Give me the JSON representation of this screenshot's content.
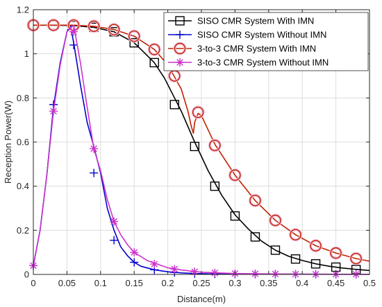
{
  "chart_data": {
    "type": "line",
    "title": "",
    "xlabel": "Distance(m)",
    "ylabel": "Reception Power(W)",
    "xlim": [
      0,
      0.5
    ],
    "ylim": [
      0,
      1.2
    ],
    "xticks": [
      0,
      0.05,
      0.1,
      0.15,
      0.2,
      0.25,
      0.3,
      0.35,
      0.4,
      0.45,
      0.5
    ],
    "xtick_labels": [
      "0",
      "0.05",
      "0.1",
      "0.15",
      "0.2",
      "0.25",
      "0.3",
      "0.35",
      "0.4",
      "0.45",
      "0.5"
    ],
    "yticks": [
      0,
      0.2,
      0.4,
      0.6,
      0.8,
      1.0,
      1.2
    ],
    "ytick_labels": [
      "0",
      "0.2",
      "0.4",
      "0.6",
      "0.8",
      "1",
      "1.2"
    ],
    "grid": true,
    "legend_position": "top-right",
    "series": [
      {
        "name": "SISO CMR System With IMN",
        "color": "#000000",
        "marker": "square",
        "line": [
          [
            0,
            1.13
          ],
          [
            0.03,
            1.13
          ],
          [
            0.06,
            1.128
          ],
          [
            0.09,
            1.12
          ],
          [
            0.12,
            1.1
          ],
          [
            0.15,
            1.05
          ],
          [
            0.17,
            0.99
          ],
          [
            0.18,
            0.96
          ],
          [
            0.195,
            0.89
          ],
          [
            0.21,
            0.8
          ],
          [
            0.22,
            0.74
          ],
          [
            0.24,
            0.6
          ],
          [
            0.26,
            0.47
          ],
          [
            0.28,
            0.36
          ],
          [
            0.3,
            0.27
          ],
          [
            0.32,
            0.205
          ],
          [
            0.34,
            0.15
          ],
          [
            0.36,
            0.11
          ],
          [
            0.38,
            0.082
          ],
          [
            0.4,
            0.063
          ],
          [
            0.42,
            0.048
          ],
          [
            0.44,
            0.037
          ],
          [
            0.46,
            0.029
          ],
          [
            0.48,
            0.023
          ],
          [
            0.5,
            0.018
          ]
        ],
        "markers": [
          [
            0,
            1.13
          ],
          [
            0.03,
            1.13
          ],
          [
            0.06,
            1.128
          ],
          [
            0.09,
            1.12
          ],
          [
            0.12,
            1.1
          ],
          [
            0.15,
            1.05
          ],
          [
            0.18,
            0.96
          ],
          [
            0.21,
            0.77
          ],
          [
            0.24,
            0.58
          ],
          [
            0.27,
            0.4
          ],
          [
            0.3,
            0.265
          ],
          [
            0.33,
            0.17
          ],
          [
            0.36,
            0.11
          ],
          [
            0.39,
            0.07
          ],
          [
            0.42,
            0.048
          ],
          [
            0.45,
            0.033
          ],
          [
            0.48,
            0.022
          ]
        ]
      },
      {
        "name": "SISO CMR System Without IMN",
        "color": "#0000cc",
        "marker": "plus",
        "line": [
          [
            0,
            0.04
          ],
          [
            0.01,
            0.2
          ],
          [
            0.02,
            0.45
          ],
          [
            0.03,
            0.76
          ],
          [
            0.04,
            0.96
          ],
          [
            0.05,
            1.1
          ],
          [
            0.055,
            1.13
          ],
          [
            0.06,
            1.05
          ],
          [
            0.07,
            0.86
          ],
          [
            0.08,
            0.69
          ],
          [
            0.09,
            0.58
          ],
          [
            0.1,
            0.46
          ],
          [
            0.11,
            0.3
          ],
          [
            0.12,
            0.2
          ],
          [
            0.13,
            0.125
          ],
          [
            0.14,
            0.085
          ],
          [
            0.15,
            0.055
          ],
          [
            0.16,
            0.037
          ],
          [
            0.18,
            0.021
          ],
          [
            0.2,
            0.012
          ],
          [
            0.22,
            0.007
          ],
          [
            0.24,
            0.004
          ],
          [
            0.27,
            0.002
          ],
          [
            0.3,
            0.0015
          ],
          [
            0.5,
            0.0005
          ]
        ],
        "markers": [
          [
            0,
            0.04
          ],
          [
            0.03,
            0.77
          ],
          [
            0.06,
            1.04
          ],
          [
            0.09,
            0.46
          ],
          [
            0.12,
            0.155
          ],
          [
            0.15,
            0.055
          ],
          [
            0.18,
            0.021
          ],
          [
            0.21,
            0.009
          ],
          [
            0.24,
            0.004
          ],
          [
            0.27,
            0.002
          ],
          [
            0.3,
            0.0015
          ],
          [
            0.33,
            0.001
          ],
          [
            0.36,
            0.001
          ],
          [
            0.39,
            0.0008
          ],
          [
            0.42,
            0.0007
          ],
          [
            0.45,
            0.0006
          ],
          [
            0.48,
            0.0005
          ]
        ]
      },
      {
        "name": "3-to-3 CMR System With IMN",
        "color": "#c02000",
        "marker": "circle",
        "line": [
          [
            0,
            1.13
          ],
          [
            0.03,
            1.13
          ],
          [
            0.06,
            1.13
          ],
          [
            0.09,
            1.125
          ],
          [
            0.12,
            1.11
          ],
          [
            0.15,
            1.08
          ],
          [
            0.18,
            1.02
          ],
          [
            0.2,
            0.95
          ],
          [
            0.22,
            0.84
          ],
          [
            0.23,
            0.74
          ],
          [
            0.235,
            0.67
          ],
          [
            0.238,
            0.64
          ],
          [
            0.24,
            0.69
          ],
          [
            0.245,
            0.73
          ],
          [
            0.25,
            0.72
          ],
          [
            0.27,
            0.59
          ],
          [
            0.3,
            0.45
          ],
          [
            0.33,
            0.335
          ],
          [
            0.36,
            0.245
          ],
          [
            0.39,
            0.18
          ],
          [
            0.42,
            0.13
          ],
          [
            0.45,
            0.097
          ],
          [
            0.48,
            0.072
          ],
          [
            0.5,
            0.06
          ]
        ],
        "markers": [
          [
            0,
            1.13
          ],
          [
            0.03,
            1.13
          ],
          [
            0.06,
            1.13
          ],
          [
            0.09,
            1.125
          ],
          [
            0.12,
            1.11
          ],
          [
            0.15,
            1.08
          ],
          [
            0.18,
            1.02
          ],
          [
            0.21,
            0.9
          ],
          [
            0.245,
            0.735
          ],
          [
            0.27,
            0.585
          ],
          [
            0.3,
            0.45
          ],
          [
            0.33,
            0.335
          ],
          [
            0.36,
            0.245
          ],
          [
            0.39,
            0.18
          ],
          [
            0.42,
            0.13
          ],
          [
            0.45,
            0.097
          ],
          [
            0.48,
            0.072
          ]
        ]
      },
      {
        "name": "3-to-3 CMR System Without IMN",
        "color": "#cc33cc",
        "marker": "asterisk",
        "line": [
          [
            0,
            0.04
          ],
          [
            0.01,
            0.2
          ],
          [
            0.02,
            0.45
          ],
          [
            0.03,
            0.74
          ],
          [
            0.04,
            0.95
          ],
          [
            0.05,
            1.1
          ],
          [
            0.06,
            1.13
          ],
          [
            0.07,
            0.96
          ],
          [
            0.08,
            0.76
          ],
          [
            0.09,
            0.57
          ],
          [
            0.1,
            0.47
          ],
          [
            0.11,
            0.34
          ],
          [
            0.12,
            0.24
          ],
          [
            0.13,
            0.18
          ],
          [
            0.14,
            0.135
          ],
          [
            0.15,
            0.1
          ],
          [
            0.17,
            0.062
          ],
          [
            0.2,
            0.03
          ],
          [
            0.22,
            0.02
          ],
          [
            0.25,
            0.01
          ],
          [
            0.3,
            0.004
          ],
          [
            0.4,
            0.001
          ],
          [
            0.5,
            0.0005
          ]
        ],
        "markers": [
          [
            0,
            0.04
          ],
          [
            0.03,
            0.74
          ],
          [
            0.06,
            1.1
          ],
          [
            0.09,
            0.57
          ],
          [
            0.12,
            0.24
          ],
          [
            0.15,
            0.1
          ],
          [
            0.18,
            0.047
          ],
          [
            0.21,
            0.024
          ],
          [
            0.24,
            0.012
          ],
          [
            0.27,
            0.007
          ],
          [
            0.3,
            0.004
          ],
          [
            0.33,
            0.003
          ],
          [
            0.36,
            0.002
          ],
          [
            0.39,
            0.0012
          ],
          [
            0.42,
            0.001
          ],
          [
            0.45,
            0.0008
          ],
          [
            0.48,
            0.0006
          ]
        ]
      }
    ]
  }
}
